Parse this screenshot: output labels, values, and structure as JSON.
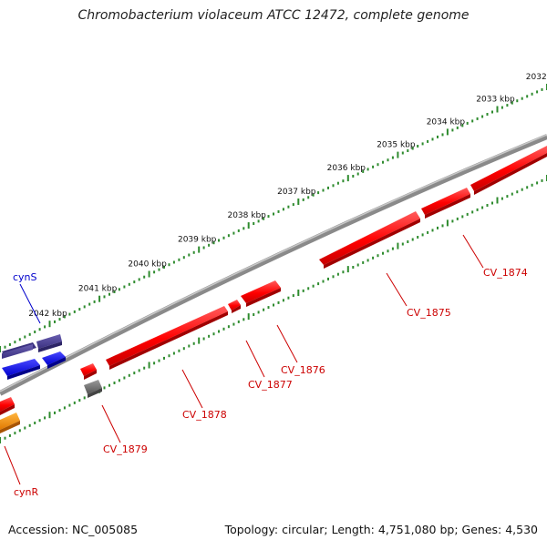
{
  "title": "Chromobacterium violaceum ATCC 12472, complete genome",
  "footer": {
    "accession": "Accession: NC_005085",
    "topology": "Topology: circular; Length: 4,751,080 bp; Genes: 4,530"
  },
  "colors": {
    "backbone": "#8a8a8a",
    "ruler_ticks": "#2e8b2e",
    "gene_red": "#ff1a1a",
    "gene_purple": "#4a3f8f",
    "gene_blue": "#1a1aff",
    "gene_orange": "#ff9900",
    "gene_gray": "#777777",
    "label_red": "#cc0000",
    "label_blue": "#0000cc"
  },
  "ruler": {
    "unit": "kbp",
    "labels": [
      "2032 kbp",
      "2033 kbp",
      "2034 kbp",
      "2035 kbp",
      "2036 kbp",
      "2037 kbp",
      "2038 kbp",
      "2039 kbp",
      "2040 kbp",
      "2041 kbp",
      "2042 kbp"
    ]
  },
  "gene_labels": [
    {
      "name": "CV_1874",
      "color": "red"
    },
    {
      "name": "CV_1875",
      "color": "red"
    },
    {
      "name": "CV_1876",
      "color": "red"
    },
    {
      "name": "CV_1877",
      "color": "red"
    },
    {
      "name": "CV_1878",
      "color": "red"
    },
    {
      "name": "CV_1879",
      "color": "red"
    },
    {
      "name": "cynS",
      "color": "blue"
    },
    {
      "name": "cynR",
      "color": "red"
    }
  ]
}
